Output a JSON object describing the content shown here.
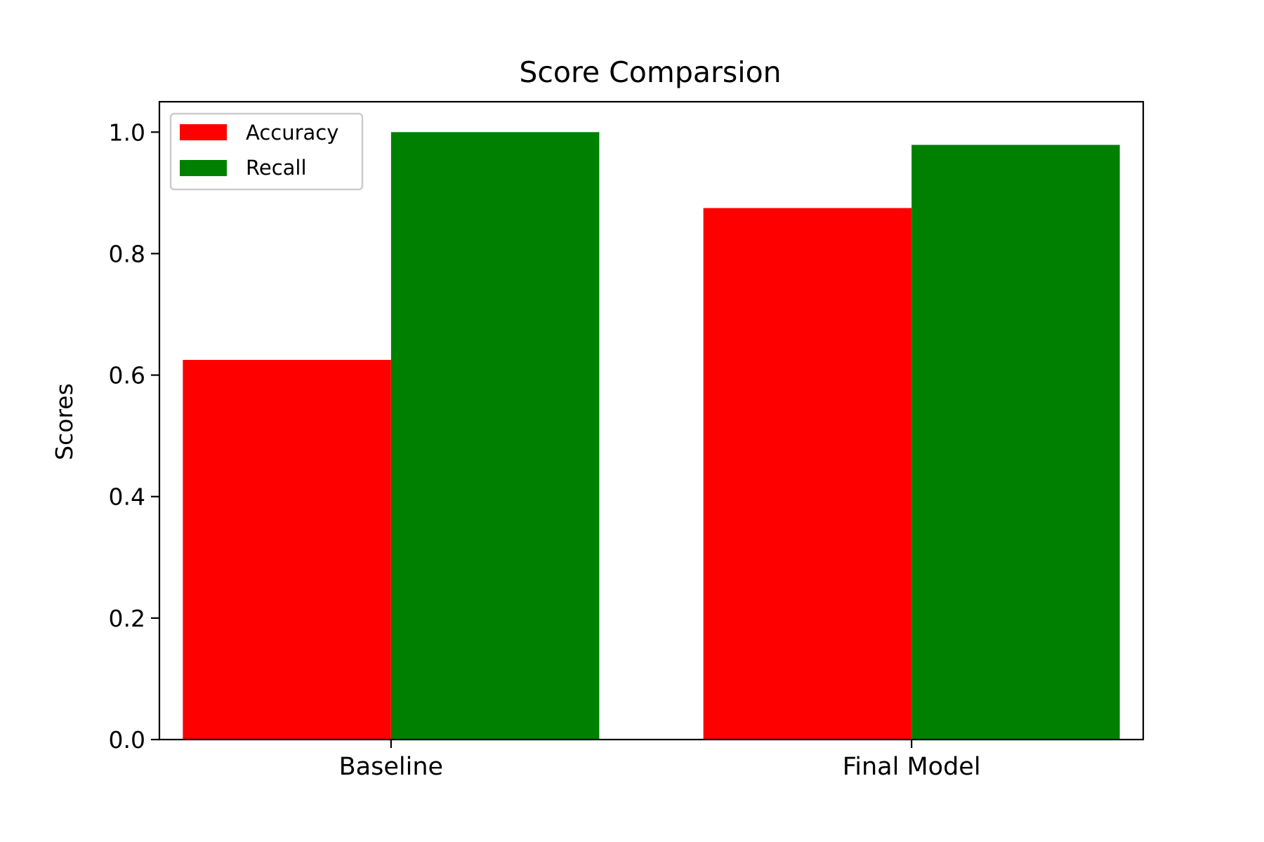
{
  "chart_data": {
    "type": "bar",
    "title": "Score Comparsion",
    "xlabel": "",
    "ylabel": "Scores",
    "categories": [
      "Baseline",
      "Final Model"
    ],
    "series": [
      {
        "name": "Accuracy",
        "values": [
          0.625,
          0.875
        ],
        "color": "#ff0000"
      },
      {
        "name": "Recall",
        "values": [
          1.0,
          0.979
        ],
        "color": "#008000"
      }
    ],
    "ylim": [
      0,
      1.05
    ],
    "yticks": [
      0.0,
      0.2,
      0.4,
      0.6,
      0.8,
      1.0
    ],
    "ytick_labels": [
      "0.0",
      "0.2",
      "0.4",
      "0.6",
      "0.8",
      "1.0"
    ],
    "grid": false,
    "legend": "top-left"
  }
}
